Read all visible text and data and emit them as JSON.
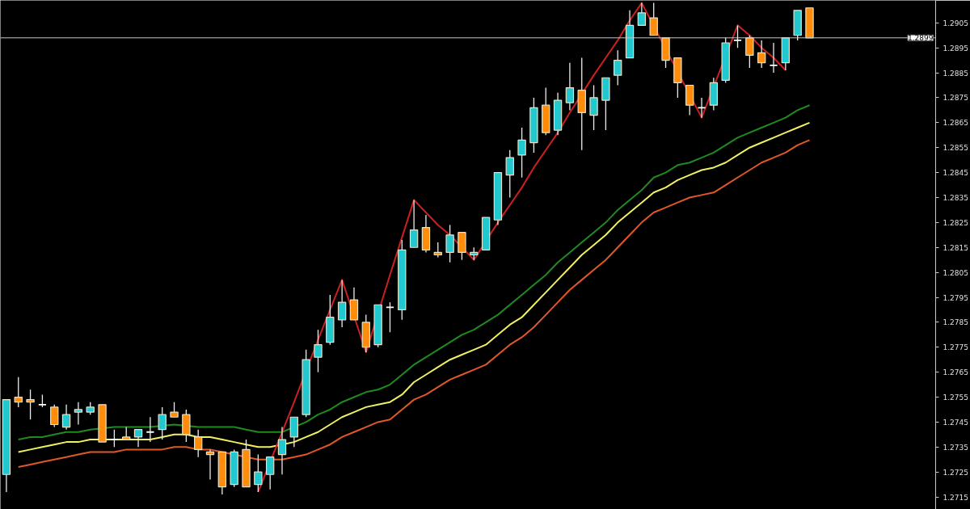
{
  "chart_data": {
    "type": "candlestick",
    "categories": [
      null,
      null,
      null,
      null,
      null,
      null,
      null,
      null,
      null,
      null,
      null,
      null,
      null,
      null,
      null,
      null,
      null,
      null,
      null,
      null,
      null,
      null,
      null,
      null,
      null,
      null,
      null,
      null,
      null,
      null,
      null,
      null,
      null,
      null,
      null,
      null,
      null,
      null,
      null,
      null,
      null,
      null,
      null,
      null,
      null,
      null,
      null,
      null,
      null,
      null,
      null,
      null,
      null,
      null,
      null,
      null,
      null,
      null,
      null,
      null,
      null,
      null,
      null,
      null,
      null,
      null,
      null,
      null
    ],
    "ohlc": [
      [
        1.2724,
        1.2754,
        1.2717,
        1.2754
      ],
      [
        1.2755,
        1.2763,
        1.2751,
        1.2753
      ],
      [
        1.2754,
        1.2758,
        1.2746,
        1.2753
      ],
      [
        1.2752,
        1.2756,
        1.2751,
        1.2752
      ],
      [
        1.2751,
        1.2752,
        1.2743,
        1.2744
      ],
      [
        1.2743,
        1.2752,
        1.2742,
        1.2748
      ],
      [
        1.2749,
        1.2753,
        1.2744,
        1.275
      ],
      [
        1.2749,
        1.2753,
        1.2748,
        1.2751
      ],
      [
        1.2752,
        1.2752,
        1.2737,
        1.2737
      ],
      [
        1.2738,
        1.2742,
        1.2735,
        1.2738
      ],
      [
        1.2739,
        1.2743,
        1.2738,
        1.2738
      ],
      [
        1.2739,
        1.2742,
        1.2735,
        1.2742
      ],
      [
        1.2741,
        1.2747,
        1.2737,
        1.2741
      ],
      [
        1.2742,
        1.2751,
        1.2738,
        1.2748
      ],
      [
        1.2749,
        1.2753,
        1.2747,
        1.2747
      ],
      [
        1.2748,
        1.275,
        1.2737,
        1.274
      ],
      [
        1.2739,
        1.2742,
        1.2731,
        1.2734
      ],
      [
        1.2733,
        1.2734,
        1.2722,
        1.2732
      ],
      [
        1.2733,
        1.2733,
        1.2716,
        1.2719
      ],
      [
        1.272,
        1.2734,
        1.2719,
        1.2733
      ],
      [
        1.2734,
        1.2738,
        1.2719,
        1.2719
      ],
      [
        1.272,
        1.2732,
        1.2717,
        1.2725
      ],
      [
        1.2724,
        1.2731,
        1.2718,
        1.2731
      ],
      [
        1.2732,
        1.2743,
        1.2724,
        1.2738
      ],
      [
        1.2739,
        1.2747,
        1.2735,
        1.2747
      ],
      [
        1.2748,
        1.2774,
        1.2747,
        1.277
      ],
      [
        1.2771,
        1.2782,
        1.2765,
        1.2776
      ],
      [
        1.2777,
        1.2796,
        1.2776,
        1.2787
      ],
      [
        1.2786,
        1.2802,
        1.2783,
        1.2793
      ],
      [
        1.2794,
        1.2799,
        1.2786,
        1.2786
      ],
      [
        1.2785,
        1.2788,
        1.2773,
        1.2775
      ],
      [
        1.2776,
        1.2792,
        1.2775,
        1.2792
      ],
      [
        1.2791,
        1.2793,
        1.2781,
        1.2791
      ],
      [
        1.279,
        1.2818,
        1.2786,
        1.2814
      ],
      [
        1.2815,
        1.2834,
        1.2815,
        1.2822
      ],
      [
        1.2823,
        1.2828,
        1.2813,
        1.2814
      ],
      [
        1.2813,
        1.2817,
        1.2811,
        1.2812
      ],
      [
        1.2813,
        1.2824,
        1.2809,
        1.282
      ],
      [
        1.2821,
        1.2821,
        1.281,
        1.2813
      ],
      [
        1.2812,
        1.2815,
        1.281,
        1.2813
      ],
      [
        1.2814,
        1.2827,
        1.2814,
        1.2827
      ],
      [
        1.2826,
        1.2845,
        1.2824,
        1.2845
      ],
      [
        1.2844,
        1.2854,
        1.2835,
        1.2851
      ],
      [
        1.2852,
        1.2863,
        1.2843,
        1.2858
      ],
      [
        1.2857,
        1.2875,
        1.2853,
        1.2871
      ],
      [
        1.2872,
        1.2879,
        1.286,
        1.2861
      ],
      [
        1.2862,
        1.2877,
        1.286,
        1.2874
      ],
      [
        1.2873,
        1.2889,
        1.287,
        1.2879
      ],
      [
        1.2878,
        1.2891,
        1.2854,
        1.2869
      ],
      [
        1.2868,
        1.288,
        1.2862,
        1.2875
      ],
      [
        1.2874,
        1.2883,
        1.2862,
        1.2883
      ],
      [
        1.2884,
        1.2894,
        1.288,
        1.289
      ],
      [
        1.2891,
        1.291,
        1.2891,
        1.2904
      ],
      [
        1.2904,
        1.2913,
        1.2904,
        1.2909
      ],
      [
        1.2907,
        1.2913,
        1.29,
        1.29
      ],
      [
        1.2899,
        1.2899,
        1.2887,
        1.289
      ],
      [
        1.2891,
        1.2891,
        1.2875,
        1.2881
      ],
      [
        1.288,
        1.288,
        1.2868,
        1.2872
      ],
      [
        1.2871,
        1.2875,
        1.2867,
        1.2871
      ],
      [
        1.2872,
        1.2883,
        1.287,
        1.2881
      ],
      [
        1.2882,
        1.2899,
        1.2881,
        1.2897
      ],
      [
        1.2898,
        1.2904,
        1.2895,
        1.2898
      ],
      [
        1.2899,
        1.29,
        1.2887,
        1.2892
      ],
      [
        1.2893,
        1.2898,
        1.2887,
        1.2889
      ],
      [
        1.2888,
        1.2897,
        1.2885,
        1.2888
      ],
      [
        1.2889,
        1.2899,
        1.2886,
        1.2899
      ],
      [
        1.29,
        1.291,
        1.2898,
        1.291
      ],
      [
        1.2911,
        1.2911,
        1.2899,
        1.2899
      ]
    ],
    "colors": [
      "#22c8d0",
      "#ff8c0a",
      "#ff8c0a",
      "#ffffff",
      "#ff8c0a",
      "#22c8d0",
      "#22c8d0",
      "#22c8d0",
      "#ff8c0a",
      "#ffffff",
      "#ff8c0a",
      "#22c8d0",
      "#ffffff",
      "#22c8d0",
      "#ff8c0a",
      "#ff8c0a",
      "#ff8c0a",
      "#ff8c0a",
      "#ff8c0a",
      "#22c8d0",
      "#ff8c0a",
      "#22c8d0",
      "#22c8d0",
      "#22c8d0",
      "#22c8d0",
      "#22c8d0",
      "#22c8d0",
      "#22c8d0",
      "#22c8d0",
      "#ff8c0a",
      "#ff8c0a",
      "#22c8d0",
      "#ffffff",
      "#22c8d0",
      "#22c8d0",
      "#ff8c0a",
      "#ff8c0a",
      "#22c8d0",
      "#ff8c0a",
      "#22c8d0",
      "#22c8d0",
      "#22c8d0",
      "#22c8d0",
      "#22c8d0",
      "#22c8d0",
      "#ff8c0a",
      "#22c8d0",
      "#22c8d0",
      "#ff8c0a",
      "#22c8d0",
      "#22c8d0",
      "#22c8d0",
      "#22c8d0",
      "#22c8d0",
      "#ff8c0a",
      "#ff8c0a",
      "#ff8c0a",
      "#ff8c0a",
      "#ffffff",
      "#22c8d0",
      "#22c8d0",
      "#ffffff",
      "#ff8c0a",
      "#ff8c0a",
      "#ffffff",
      "#22c8d0",
      "#22c8d0",
      "#ff8c0a"
    ],
    "series": [
      {
        "type": "line",
        "color": "#1f8a1f",
        "values": [
          null,
          1.2738,
          1.2739,
          1.2739,
          1.274,
          1.2741,
          1.2741,
          1.2742,
          null,
          1.2743,
          1.2743,
          1.2743,
          1.2743,
          null,
          1.2744,
          null,
          1.2743,
          1.2743,
          1.2743,
          1.2743,
          1.2742,
          1.2741,
          1.2741,
          1.2741,
          null,
          1.2745,
          1.2748,
          1.275,
          1.2753,
          1.2755,
          1.2757,
          1.2758,
          1.276,
          1.2764,
          1.2768,
          1.2771,
          1.2774,
          1.2777,
          1.278,
          1.2782,
          1.2785,
          1.2788,
          1.2792,
          1.2796,
          1.28,
          1.2804,
          1.2809,
          1.2813,
          1.2817,
          1.2821,
          1.2825,
          1.283,
          1.2834,
          1.2838,
          1.2843,
          1.2845,
          1.2848,
          1.2849,
          1.2851,
          1.2853,
          1.2856,
          1.2859,
          1.2861,
          1.2863,
          1.2865,
          1.2867,
          1.287,
          1.2872
        ]
      },
      {
        "type": "line",
        "color": "#f0f060",
        "values": [
          null,
          1.2733,
          1.2734,
          1.2735,
          1.2736,
          1.2737,
          1.2737,
          1.2738,
          null,
          1.2738,
          1.2738,
          1.2738,
          1.2738,
          1.2739,
          1.274,
          1.274,
          1.2739,
          1.2739,
          1.2738,
          1.2737,
          1.2736,
          1.2735,
          1.2735,
          1.2736,
          1.2737,
          1.2739,
          1.2741,
          1.2744,
          1.2747,
          1.2749,
          1.2751,
          1.2752,
          1.2753,
          1.2756,
          1.2761,
          1.2764,
          1.2767,
          1.277,
          1.2772,
          1.2774,
          1.2776,
          1.278,
          1.2784,
          1.2787,
          1.2792,
          1.2797,
          1.2802,
          1.2807,
          1.2812,
          1.2816,
          1.282,
          1.2825,
          1.2829,
          1.2833,
          1.2837,
          1.2839,
          1.2842,
          1.2844,
          1.2846,
          1.2847,
          1.2849,
          1.2852,
          1.2855,
          1.2857,
          1.2859,
          1.2861,
          1.2863,
          1.2865
        ]
      },
      {
        "type": "line",
        "color": "#e0582a",
        "values": [
          null,
          1.2727,
          1.2728,
          1.2729,
          1.273,
          1.2731,
          1.2732,
          1.2733,
          1.2733,
          1.2733,
          1.2734,
          1.2734,
          1.2734,
          1.2734,
          1.2735,
          1.2735,
          1.2734,
          1.2734,
          1.2733,
          null,
          null,
          1.273,
          null,
          1.273,
          1.2731,
          1.2732,
          1.2734,
          1.2736,
          1.2739,
          1.2741,
          1.2743,
          1.2745,
          1.2746,
          1.275,
          1.2754,
          1.2756,
          1.2759,
          1.2762,
          1.2764,
          1.2766,
          1.2768,
          1.2772,
          1.2776,
          1.2779,
          1.2783,
          1.2788,
          1.2793,
          1.2798,
          1.2802,
          1.2806,
          1.281,
          1.2815,
          1.282,
          1.2825,
          1.2829,
          1.2831,
          1.2833,
          1.2835,
          1.2836,
          1.2837,
          1.284,
          1.2843,
          1.2846,
          1.2849,
          1.2851,
          1.2853,
          1.2856,
          1.2858
        ]
      },
      {
        "type": "line",
        "color": "#cc2020",
        "values": [
          null,
          null,
          null,
          null,
          null,
          null,
          null,
          null,
          null,
          null,
          null,
          null,
          null,
          null,
          null,
          null,
          null,
          null,
          null,
          null,
          null,
          1.2717,
          null,
          1.2741,
          1.2753,
          null,
          1.2778,
          1.279,
          1.2802,
          null,
          1.2773,
          null,
          1.2804,
          1.2819,
          1.2834,
          1.2829,
          1.2824,
          1.282,
          null,
          1.281,
          null,
          1.2825,
          1.2832,
          1.2839,
          1.2847,
          1.2854,
          1.2861,
          1.2869,
          null,
          1.2884,
          1.2891,
          1.2898,
          1.2906,
          1.2913,
          null,
          null,
          null,
          null,
          1.2867,
          null,
          null,
          1.2904,
          1.29,
          1.2895,
          1.2891,
          1.2886,
          null,
          null
        ]
      }
    ],
    "ref_lines": [
      {
        "axis": "y",
        "value": 1.2899,
        "label": "1.2899",
        "color": "#c8c8c8"
      }
    ],
    "ylim": [
      1.271,
      1.2914
    ],
    "yticks": [
      1.2715,
      1.2725,
      1.2735,
      1.2745,
      1.2755,
      1.2765,
      1.2775,
      1.2785,
      1.2795,
      1.2805,
      1.2815,
      1.2825,
      1.2835,
      1.2845,
      1.2855,
      1.2865,
      1.2875,
      1.2885,
      1.2895,
      1.2905
    ],
    "tick_labels": "y",
    "grid": false
  }
}
